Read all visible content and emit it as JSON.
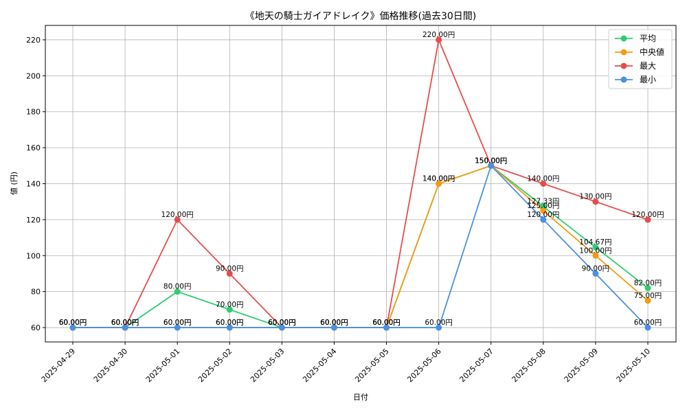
{
  "chart_data": {
    "type": "line",
    "title": "《地天の騎士ガイアドレイク》価格推移(過去30日間)",
    "xlabel": "日付",
    "ylabel": "値 (円)",
    "categories": [
      "2025-04-29",
      "2025-04-30",
      "2025-05-01",
      "2025-05-02",
      "2025-05-03",
      "2025-05-04",
      "2025-05-05",
      "2025-05-06",
      "2025-05-07",
      "2025-05-08",
      "2025-05-09",
      "2025-05-10"
    ],
    "ylim": [
      52,
      228
    ],
    "yticks": [
      60,
      80,
      100,
      120,
      140,
      160,
      180,
      200,
      220
    ],
    "grid": true,
    "legend_position": "top-right",
    "label_suffix": "円",
    "series": [
      {
        "name": "平均",
        "color": "#2ecc71",
        "values": [
          60,
          60,
          80,
          70,
          60,
          60,
          60,
          140,
          150,
          127.33,
          104.67,
          82
        ]
      },
      {
        "name": "中央値",
        "color": "#f39c12",
        "values": [
          60,
          60,
          60,
          60,
          60,
          60,
          60,
          140,
          150,
          125,
          100,
          75
        ]
      },
      {
        "name": "最大",
        "color": "#e74c4c",
        "values": [
          60,
          60,
          120,
          90,
          60,
          60,
          60,
          220,
          150,
          140,
          130,
          120
        ]
      },
      {
        "name": "最小",
        "color": "#4a90e2",
        "values": [
          60,
          60,
          60,
          60,
          60,
          60,
          60,
          60,
          150,
          120,
          90,
          60
        ]
      }
    ]
  }
}
